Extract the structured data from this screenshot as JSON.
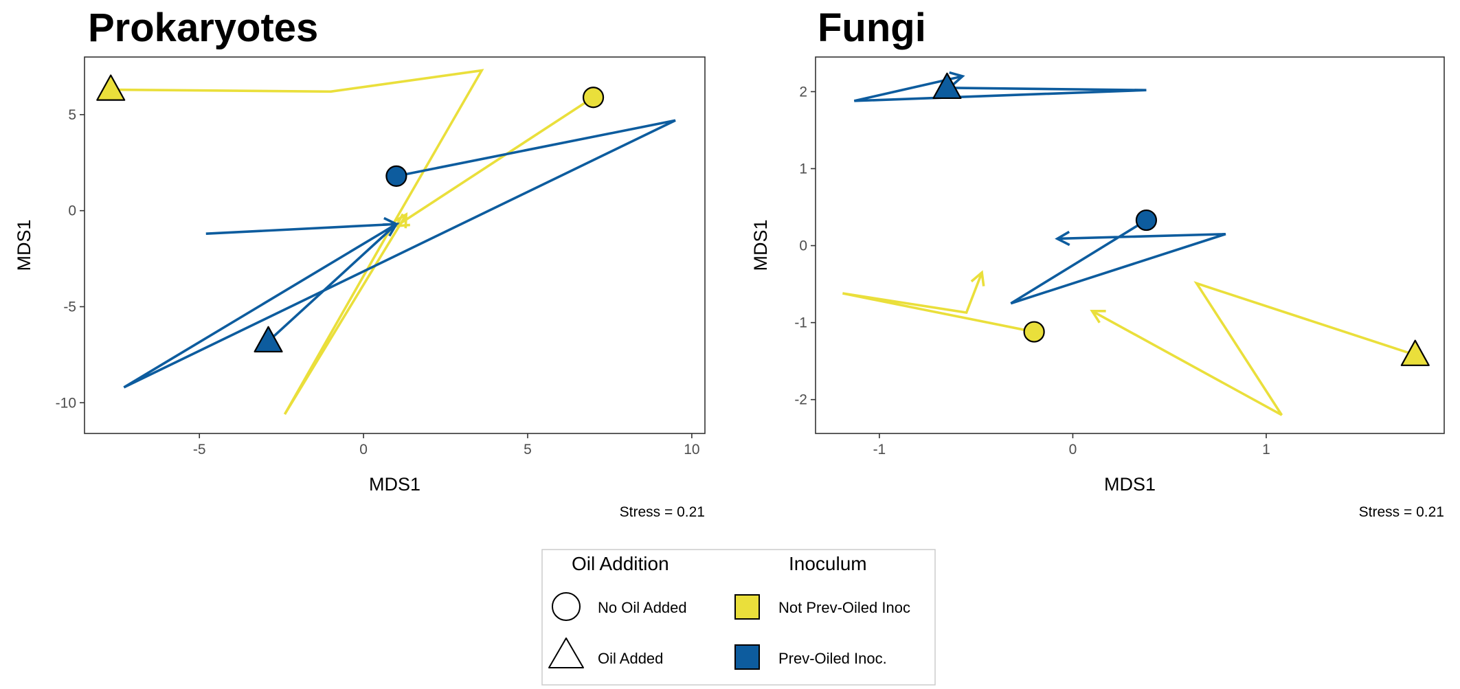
{
  "colors": {
    "yellow": "#EADF3B",
    "blue": "#0D5C9E",
    "frame": "#333333",
    "tick_text": "#4d4d4d"
  },
  "chart_data": [
    {
      "type": "scatter",
      "title": "Prokaryotes",
      "xlabel": "MDS1",
      "ylabel": "MDS1",
      "xlim": [
        -8.5,
        10.4
      ],
      "ylim": [
        -11.6,
        8.0
      ],
      "xticks": [
        -5,
        0,
        5,
        10
      ],
      "xtick_labels": [
        "-5",
        "0",
        "5",
        "10"
      ],
      "yticks": [
        -10,
        -5,
        0,
        5
      ],
      "ytick_labels": [
        "-10",
        "-5",
        "0",
        "5"
      ],
      "grid": false,
      "annotation": "Stress = 0.21",
      "series": [
        {
          "inoculum": "Not Prev-Oiled Inoc",
          "oil": "Oil Added",
          "color_key": "yellow",
          "marker": "triangle",
          "points": [
            [
              -7.7,
              6.3
            ],
            [
              -1.0,
              6.2
            ],
            [
              3.6,
              7.3
            ],
            [
              0.9,
              -0.7
            ],
            [
              -2.4,
              -10.6
            ],
            [
              1.3,
              -0.2
            ]
          ],
          "arrow_end": true
        },
        {
          "inoculum": "Not Prev-Oiled Inoc",
          "oil": "No Oil Added",
          "color_key": "yellow",
          "marker": "circle",
          "points": [
            [
              7.0,
              5.9
            ],
            [
              1.0,
              -0.8
            ]
          ],
          "arrow_end": true
        },
        {
          "inoculum": "Prev-Oiled Inoc.",
          "oil": "No Oil Added",
          "color_key": "blue",
          "marker": "circle",
          "points": [
            [
              1.0,
              1.8
            ],
            [
              9.5,
              4.7
            ],
            [
              -7.3,
              -9.2
            ],
            [
              1.0,
              -0.7
            ]
          ],
          "arrow_end": true
        },
        {
          "inoculum": "Prev-Oiled Inoc.",
          "oil": "Oil Added",
          "color_key": "blue",
          "marker": "triangle",
          "points": [
            [
              -2.9,
              -6.8
            ],
            [
              1.0,
              -0.7
            ],
            [
              -4.8,
              -1.2
            ],
            [
              1.0,
              -0.7
            ]
          ],
          "arrow_end": true
        }
      ]
    },
    {
      "type": "scatter",
      "title": "Fungi",
      "xlabel": "MDS1",
      "ylabel": "MDS1",
      "xlim": [
        -1.33,
        1.92
      ],
      "ylim": [
        -2.44,
        2.45
      ],
      "xticks": [
        -1,
        0,
        1
      ],
      "xtick_labels": [
        "-1",
        "0",
        "1"
      ],
      "yticks": [
        -2,
        -1,
        0,
        1,
        2
      ],
      "ytick_labels": [
        "-2",
        "-1",
        "0",
        "1",
        "2"
      ],
      "grid": false,
      "annotation": "Stress = 0.21",
      "series": [
        {
          "inoculum": "Prev-Oiled Inoc.",
          "oil": "Oil Added",
          "color_key": "blue",
          "marker": "triangle",
          "points": [
            [
              -0.65,
              2.05
            ],
            [
              0.38,
              2.02
            ],
            [
              -1.13,
              1.88
            ],
            [
              -0.57,
              2.2
            ]
          ],
          "arrow_end": true
        },
        {
          "inoculum": "Prev-Oiled Inoc.",
          "oil": "No Oil Added",
          "color_key": "blue",
          "marker": "circle",
          "points": [
            [
              0.38,
              0.33
            ],
            [
              -0.32,
              -0.75
            ],
            [
              0.79,
              0.15
            ],
            [
              -0.08,
              0.09
            ]
          ],
          "arrow_end": true
        },
        {
          "inoculum": "Not Prev-Oiled Inoc",
          "oil": "No Oil Added",
          "color_key": "yellow",
          "marker": "circle",
          "points": [
            [
              -0.2,
              -1.12
            ],
            [
              -1.19,
              -0.62
            ],
            [
              -0.55,
              -0.87
            ],
            [
              -0.47,
              -0.35
            ]
          ],
          "arrow_end": true
        },
        {
          "inoculum": "Not Prev-Oiled Inoc",
          "oil": "Oil Added",
          "color_key": "yellow",
          "marker": "triangle",
          "points": [
            [
              1.77,
              -1.42
            ],
            [
              0.64,
              -0.49
            ],
            [
              1.08,
              -2.2
            ],
            [
              0.1,
              -0.85
            ]
          ],
          "arrow_end": true
        }
      ]
    }
  ],
  "legend": {
    "oil_title": "Oil Addition",
    "oil_items": [
      {
        "label": "No Oil Added",
        "shape": "circle"
      },
      {
        "label": "Oil Added",
        "shape": "triangle"
      }
    ],
    "inoc_title": "Inoculum",
    "inoc_items": [
      {
        "label": "Not Prev-Oiled Inoc",
        "color_key": "yellow"
      },
      {
        "label": "Prev-Oiled Inoc.",
        "color_key": "blue"
      }
    ]
  }
}
